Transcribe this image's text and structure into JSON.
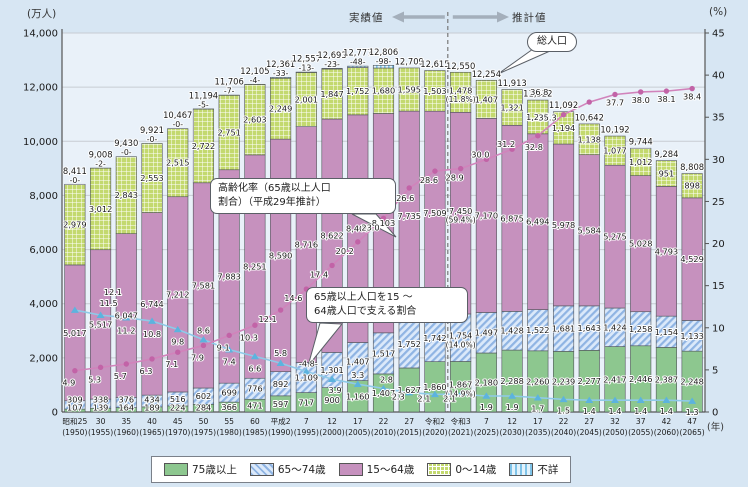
{
  "axes": {
    "left_unit": "(万人)",
    "right_unit": "(%)",
    "x_unit": "(年)",
    "left_ticks": [
      0,
      2000,
      4000,
      6000,
      8000,
      10000,
      12000,
      14000
    ],
    "right_ticks": [
      0,
      5,
      10,
      15,
      20,
      25,
      30,
      35,
      40,
      45
    ],
    "left_max": 14000,
    "right_max": 45
  },
  "annotations": {
    "actual": "実績値",
    "projected": "推計値",
    "total_pop": "総人口",
    "aging_rate": "高齢化率（65歳以上人口\n割合）（平成29年推計）",
    "support_ratio": "65歳以上人口を15 ～\n64歳人口で支える割合"
  },
  "legend": {
    "items": [
      {
        "label": "75歳以上",
        "swatch": "green-solid",
        "color": "#8dc78f"
      },
      {
        "label": "65～74歳",
        "swatch": "blue-diagonal-hatch",
        "color": "#8fb4e3"
      },
      {
        "label": "15～64歳",
        "swatch": "pink-solid",
        "color": "#c691be"
      },
      {
        "label": "0～14歳",
        "swatch": "green-grid",
        "color": "#c3d96e"
      },
      {
        "label": "不詳",
        "swatch": "cyan-vertical-stripes",
        "color": "#7fc3e8"
      }
    ]
  },
  "chart_data": {
    "type": "bar",
    "subtype": "stacked-bars-with-two-percent-lines",
    "grid": true,
    "ylabel_left": "(万人)",
    "ylim_left": [
      0,
      14000
    ],
    "ylabel_right": "(%)",
    "ylim_right": [
      0,
      45
    ],
    "categories": [
      {
        "era": "昭和25",
        "year": "(1950)"
      },
      {
        "era": "30",
        "year": "(1955)"
      },
      {
        "era": "35",
        "year": "(1960)"
      },
      {
        "era": "40",
        "year": "(1965)"
      },
      {
        "era": "45",
        "year": "(1970)"
      },
      {
        "era": "50",
        "year": "(1975)"
      },
      {
        "era": "55",
        "year": "(1980)"
      },
      {
        "era": "60",
        "year": "(1985)"
      },
      {
        "era": "平成2",
        "year": "(1990)"
      },
      {
        "era": "7",
        "year": "(1995)"
      },
      {
        "era": "12",
        "year": "(2000)"
      },
      {
        "era": "17",
        "year": "(2005)"
      },
      {
        "era": "22",
        "year": "(2010)"
      },
      {
        "era": "27",
        "year": "(2015)"
      },
      {
        "era": "令和2",
        "year": "(2020)"
      },
      {
        "era": "令和3",
        "year": "(2021)"
      },
      {
        "era": "7",
        "year": "(2025)"
      },
      {
        "era": "12",
        "year": "(2030)"
      },
      {
        "era": "17",
        "year": "(2035)"
      },
      {
        "era": "22",
        "year": "(2040)"
      },
      {
        "era": "27",
        "year": "(2045)"
      },
      {
        "era": "32",
        "year": "(2050)"
      },
      {
        "era": "37",
        "year": "(2055)"
      },
      {
        "era": "42",
        "year": "(2060)"
      },
      {
        "era": "47",
        "year": "(2065)"
      }
    ],
    "totals": [
      8411,
      9008,
      9430,
      9921,
      10467,
      11194,
      11706,
      12105,
      12361,
      12557,
      12693,
      12777,
      12806,
      12709,
      12615,
      12550,
      12254,
      11913,
      11522,
      11092,
      10642,
      10192,
      9744,
      9284,
      8808
    ],
    "series": [
      {
        "name": "75歳以上",
        "values": [
          107,
          139,
          164,
          189,
          224,
          284,
          366,
          471,
          597,
          717,
          900,
          1160,
          1407,
          1627,
          1860,
          1867,
          2180,
          2288,
          2260,
          2239,
          2277,
          2417,
          2446,
          2387,
          2248
        ]
      },
      {
        "name": "65～74歳",
        "values": [
          309,
          338,
          376,
          434,
          516,
          602,
          699,
          776,
          892,
          1109,
          1301,
          1407,
          1517,
          1752,
          1742,
          1754,
          1497,
          1428,
          1522,
          1681,
          1643,
          1424,
          1258,
          1154,
          1133
        ]
      },
      {
        "name": "15～64歳",
        "values": [
          5017,
          5517,
          6047,
          6744,
          7212,
          7581,
          7883,
          8251,
          8590,
          8716,
          8622,
          8409,
          8103,
          7735,
          7509,
          7450,
          7170,
          6875,
          6494,
          5978,
          5584,
          5275,
          5028,
          4793,
          4529
        ]
      },
      {
        "name": "0～14歳",
        "values": [
          2979,
          3012,
          2843,
          2553,
          2515,
          2722,
          2751,
          2603,
          2249,
          2001,
          1847,
          1752,
          1680,
          1595,
          1503,
          1478,
          1407,
          1321,
          1246,
          1194,
          1138,
          1077,
          1012,
          951,
          898
        ]
      },
      {
        "name": "不詳",
        "values": [
          0,
          2,
          0,
          0,
          0,
          5,
          7,
          4,
          33,
          13,
          23,
          48,
          98,
          null,
          null,
          null,
          null,
          null,
          null,
          null,
          null,
          null,
          null,
          null,
          null
        ]
      }
    ],
    "pct_2021": {
      "index": 15,
      "p75plus": "(14.9%)",
      "p65to74": "(14.0%)",
      "p15to64": "(59.4%)",
      "p0to14": "(11.8%)"
    },
    "lines": [
      {
        "name": "高齢化率（65歳以上人口割合）",
        "axis": "right",
        "color": "#d183bb",
        "values": [
          4.9,
          5.3,
          5.7,
          6.3,
          7.1,
          7.9,
          9.1,
          10.3,
          12.1,
          14.6,
          17.4,
          20.2,
          23.0,
          26.6,
          28.6,
          28.9,
          30.0,
          31.2,
          32.8,
          35.3,
          36.8,
          37.7,
          38.0,
          38.1,
          38.4
        ]
      },
      {
        "name": "65歳以上人口を15～64歳人口で支える割合",
        "axis": "right",
        "color": "#8ecae8",
        "values": [
          12.1,
          11.5,
          11.2,
          10.8,
          9.8,
          8.6,
          7.4,
          6.6,
          5.8,
          4.8,
          3.9,
          3.3,
          2.8,
          2.3,
          2.1,
          2.1,
          1.9,
          1.9,
          1.7,
          1.5,
          1.4,
          1.4,
          1.4,
          1.4,
          1.3
        ]
      }
    ],
    "divider_after_index": 14
  }
}
